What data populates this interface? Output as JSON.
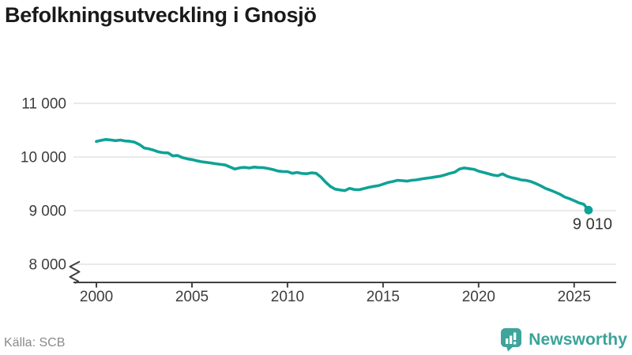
{
  "title": "Befolkningsutveckling i Gnosjö",
  "source": "Källa: SCB",
  "branding": {
    "logo_text": "Newsworthy",
    "logo_icon": "newsworthy-bar-chart-speech-bubble-icon",
    "brand_color": "#3EA49C"
  },
  "colors": {
    "line": "#0FA296",
    "marker": "#0FA296",
    "grid": "#E4E4E4",
    "axis": "#404040",
    "tick_label": "#3D3D3D",
    "title": "#1A1A1A",
    "last_label": "#333333",
    "source": "#8A8A8A"
  },
  "chart_data": {
    "type": "line",
    "title": "Befolkningsutveckling i Gnosjö",
    "xlabel": "",
    "ylabel": "",
    "x_start": 2000.0,
    "x_step": 0.25,
    "values": [
      10290,
      10310,
      10326,
      10318,
      10304,
      10316,
      10298,
      10292,
      10276,
      10232,
      10168,
      10152,
      10126,
      10096,
      10080,
      10076,
      10020,
      10028,
      9988,
      9966,
      9952,
      9930,
      9912,
      9900,
      9888,
      9874,
      9862,
      9850,
      9812,
      9775,
      9798,
      9806,
      9794,
      9812,
      9804,
      9800,
      9786,
      9764,
      9738,
      9730,
      9726,
      9696,
      9712,
      9694,
      9688,
      9705,
      9696,
      9625,
      9530,
      9448,
      9400,
      9386,
      9374,
      9415,
      9393,
      9390,
      9412,
      9434,
      9452,
      9464,
      9494,
      9524,
      9542,
      9564,
      9559,
      9550,
      9566,
      9574,
      9590,
      9603,
      9615,
      9630,
      9643,
      9667,
      9695,
      9717,
      9775,
      9795,
      9783,
      9770,
      9735,
      9713,
      9690,
      9663,
      9650,
      9685,
      9640,
      9613,
      9595,
      9571,
      9563,
      9540,
      9505,
      9463,
      9415,
      9383,
      9345,
      9307,
      9255,
      9223,
      9185,
      9145,
      9119,
      9010
    ],
    "x_ticks": {
      "values": [
        2000,
        2005,
        2010,
        2015,
        2020,
        2025
      ],
      "labels": [
        "2000",
        "2005",
        "2010",
        "2015",
        "2020",
        "2025"
      ]
    },
    "y_ticks": {
      "values": [
        11000,
        10000,
        9000,
        8000
      ],
      "labels": [
        "11 000",
        "10 000",
        "9 000",
        "8 000"
      ]
    },
    "xlim": [
      1998.8,
      2027.2
    ],
    "ylim": [
      8000,
      11000
    ],
    "grid": "horizontal",
    "legend": "none",
    "y_axis_break": true,
    "last_point": {
      "x": 2025.75,
      "value": 9010,
      "label": "9 010"
    }
  }
}
